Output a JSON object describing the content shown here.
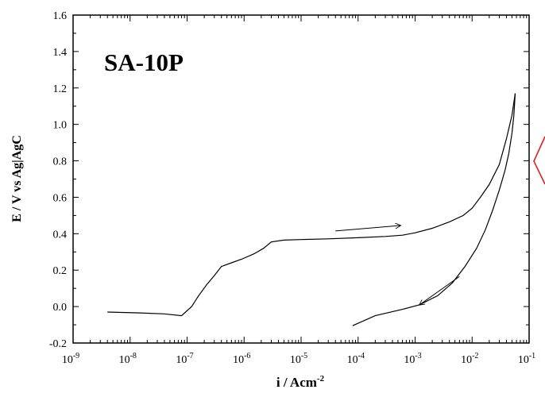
{
  "chart_data": {
    "type": "line",
    "title": "SA-10P",
    "xlabel_main": "i / Acm",
    "xlabel_sup": "-2",
    "ylabel": "E / V vs Ag|AgC",
    "xscale": "log",
    "xlim": [
      1e-09,
      0.1
    ],
    "ylim": [
      -0.2,
      1.6
    ],
    "x_ticks": [
      {
        "value": 1e-09,
        "base": "10",
        "exp": "-9"
      },
      {
        "value": 1e-08,
        "base": "10",
        "exp": "-8"
      },
      {
        "value": 1e-07,
        "base": "10",
        "exp": "-7"
      },
      {
        "value": 1e-06,
        "base": "10",
        "exp": "-6"
      },
      {
        "value": 1e-05,
        "base": "10",
        "exp": "-5"
      },
      {
        "value": 0.0001,
        "base": "10",
        "exp": "-4"
      },
      {
        "value": 0.001,
        "base": "10",
        "exp": "-3"
      },
      {
        "value": 0.01,
        "base": "10",
        "exp": "-2"
      },
      {
        "value": 0.1,
        "base": "10",
        "exp": "-1"
      }
    ],
    "y_ticks": [
      {
        "value": -0.2,
        "label": "-0.2"
      },
      {
        "value": 0.0,
        "label": "0.0"
      },
      {
        "value": 0.2,
        "label": "0.2"
      },
      {
        "value": 0.4,
        "label": "0.4"
      },
      {
        "value": 0.6,
        "label": "0.6"
      },
      {
        "value": 0.8,
        "label": "0.8"
      },
      {
        "value": 1.0,
        "label": "1.0"
      },
      {
        "value": 1.2,
        "label": "1.2"
      },
      {
        "value": 1.4,
        "label": "1.4"
      },
      {
        "value": 1.6,
        "label": "1.6"
      }
    ],
    "grid": false,
    "line_color": "#000000",
    "marker_color": "#dd2222",
    "series": [
      {
        "direction": "forward",
        "points": [
          [
            4e-09,
            -0.03
          ],
          [
            1.5e-08,
            -0.035
          ],
          [
            4e-08,
            -0.04
          ],
          [
            8e-08,
            -0.05
          ],
          [
            1.2e-07,
            0.0
          ],
          [
            1.6e-07,
            0.06
          ],
          [
            2.2e-07,
            0.12
          ],
          [
            3e-07,
            0.17
          ],
          [
            4e-07,
            0.22
          ],
          [
            6e-07,
            0.24
          ],
          [
            9e-07,
            0.26
          ],
          [
            1.5e-06,
            0.29
          ],
          [
            2.2e-06,
            0.32
          ],
          [
            3e-06,
            0.355
          ],
          [
            5e-06,
            0.365
          ],
          [
            1e-05,
            0.368
          ],
          [
            3e-05,
            0.372
          ],
          [
            0.0001,
            0.378
          ],
          [
            0.0003,
            0.385
          ],
          [
            0.0006,
            0.392
          ],
          [
            0.001,
            0.405
          ],
          [
            0.002,
            0.43
          ],
          [
            0.004,
            0.465
          ],
          [
            0.007,
            0.5
          ],
          [
            0.01,
            0.54
          ],
          [
            0.014,
            0.6
          ],
          [
            0.02,
            0.67
          ],
          [
            0.03,
            0.78
          ],
          [
            0.04,
            0.92
          ],
          [
            0.05,
            1.05
          ],
          [
            0.057,
            1.17
          ]
        ]
      },
      {
        "direction": "reverse",
        "points": [
          [
            0.057,
            1.17
          ],
          [
            0.054,
            1.05
          ],
          [
            0.05,
            0.95
          ],
          [
            0.044,
            0.84
          ],
          [
            0.038,
            0.75
          ],
          [
            0.03,
            0.64
          ],
          [
            0.023,
            0.53
          ],
          [
            0.017,
            0.42
          ],
          [
            0.012,
            0.32
          ],
          [
            0.0075,
            0.22
          ],
          [
            0.0045,
            0.13
          ],
          [
            0.0025,
            0.06
          ],
          [
            0.0012,
            0.01
          ],
          [
            0.0006,
            -0.015
          ],
          [
            0.0002,
            -0.05
          ],
          [
            8e-05,
            -0.105
          ]
        ]
      }
    ],
    "arrows": [
      {
        "from": [
          4e-05,
          0.415
        ],
        "to": [
          0.00055,
          0.445
        ]
      },
      {
        "from": [
          0.006,
          0.165
        ],
        "to": [
          0.0012,
          0.01
        ]
      }
    ]
  }
}
